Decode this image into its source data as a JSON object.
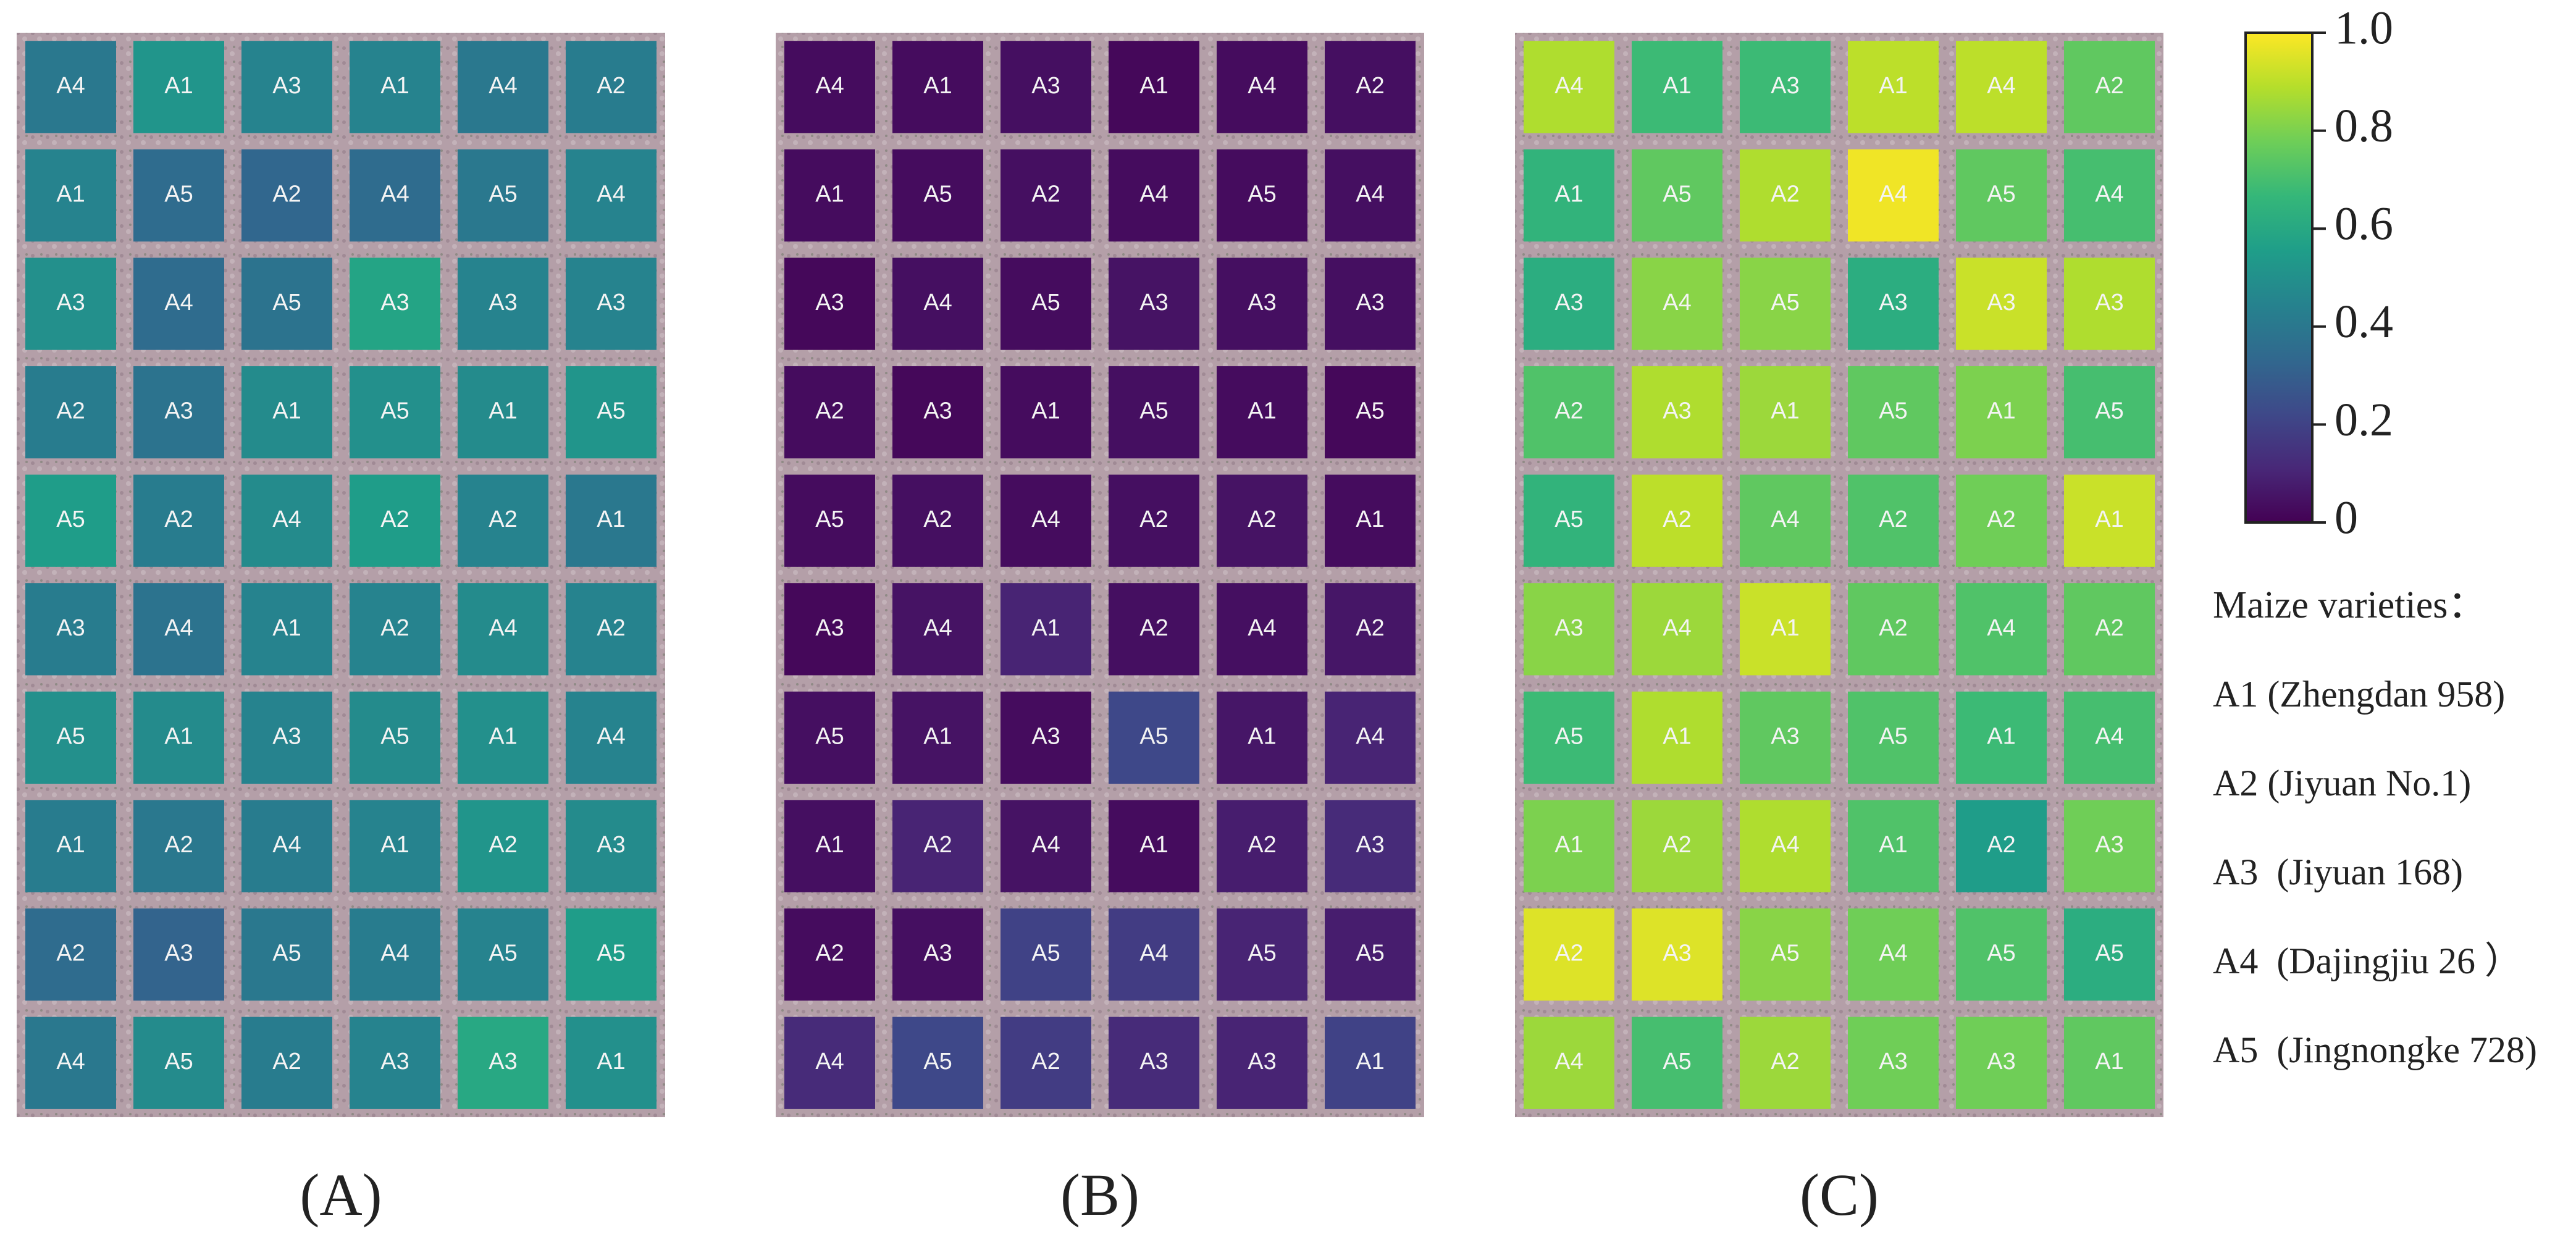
{
  "plot_labels": [
    [
      "A4",
      "A1",
      "A3",
      "A1",
      "A4",
      "A2"
    ],
    [
      "A1",
      "A5",
      "A2",
      "A4",
      "A5",
      "A4"
    ],
    [
      "A3",
      "A4",
      "A5",
      "A3",
      "A3",
      "A3"
    ],
    [
      "A2",
      "A3",
      "A1",
      "A5",
      "A1",
      "A5"
    ],
    [
      "A5",
      "A2",
      "A4",
      "A2",
      "A2",
      "A1"
    ],
    [
      "A3",
      "A4",
      "A1",
      "A2",
      "A4",
      "A2"
    ],
    [
      "A5",
      "A1",
      "A3",
      "A5",
      "A1",
      "A4"
    ],
    [
      "A1",
      "A2",
      "A4",
      "A1",
      "A2",
      "A3"
    ],
    [
      "A2",
      "A3",
      "A5",
      "A4",
      "A5",
      "A5"
    ],
    [
      "A4",
      "A5",
      "A2",
      "A3",
      "A3",
      "A1"
    ]
  ],
  "chart_data": [
    {
      "type": "heatmap",
      "title": "(A)",
      "values": [
        [
          0.4,
          0.52,
          0.45,
          0.45,
          0.4,
          0.42
        ],
        [
          0.45,
          0.35,
          0.33,
          0.35,
          0.4,
          0.45
        ],
        [
          0.5,
          0.35,
          0.38,
          0.58,
          0.45,
          0.45
        ],
        [
          0.42,
          0.38,
          0.48,
          0.5,
          0.48,
          0.52
        ],
        [
          0.55,
          0.42,
          0.48,
          0.55,
          0.45,
          0.4
        ],
        [
          0.42,
          0.38,
          0.45,
          0.45,
          0.48,
          0.45
        ],
        [
          0.5,
          0.48,
          0.45,
          0.48,
          0.5,
          0.45
        ],
        [
          0.42,
          0.4,
          0.42,
          0.45,
          0.52,
          0.48
        ],
        [
          0.35,
          0.32,
          0.4,
          0.42,
          0.45,
          0.55
        ],
        [
          0.4,
          0.48,
          0.42,
          0.45,
          0.6,
          0.5
        ]
      ]
    },
    {
      "type": "heatmap",
      "title": "(B)",
      "values": [
        [
          0.03,
          0.03,
          0.04,
          0.02,
          0.03,
          0.04
        ],
        [
          0.03,
          0.03,
          0.04,
          0.03,
          0.03,
          0.04
        ],
        [
          0.02,
          0.04,
          0.03,
          0.05,
          0.04,
          0.04
        ],
        [
          0.03,
          0.02,
          0.03,
          0.04,
          0.03,
          0.02
        ],
        [
          0.03,
          0.04,
          0.03,
          0.04,
          0.05,
          0.03
        ],
        [
          0.02,
          0.05,
          0.1,
          0.04,
          0.04,
          0.06
        ],
        [
          0.04,
          0.05,
          0.03,
          0.22,
          0.06,
          0.1
        ],
        [
          0.04,
          0.1,
          0.05,
          0.03,
          0.08,
          0.12
        ],
        [
          0.03,
          0.04,
          0.2,
          0.18,
          0.1,
          0.08
        ],
        [
          0.12,
          0.22,
          0.18,
          0.12,
          0.1,
          0.2
        ]
      ]
    },
    {
      "type": "heatmap",
      "title": "(C)",
      "values": [
        [
          0.88,
          0.68,
          0.68,
          0.9,
          0.9,
          0.75
        ],
        [
          0.65,
          0.75,
          0.88,
          0.98,
          0.75,
          0.7
        ],
        [
          0.62,
          0.82,
          0.82,
          0.62,
          0.92,
          0.88
        ],
        [
          0.72,
          0.88,
          0.85,
          0.75,
          0.8,
          0.7
        ],
        [
          0.65,
          0.9,
          0.75,
          0.72,
          0.78,
          0.92
        ],
        [
          0.82,
          0.85,
          0.92,
          0.75,
          0.72,
          0.75
        ],
        [
          0.68,
          0.88,
          0.75,
          0.72,
          0.68,
          0.7
        ],
        [
          0.8,
          0.85,
          0.88,
          0.72,
          0.55,
          0.78
        ],
        [
          0.95,
          0.95,
          0.82,
          0.78,
          0.72,
          0.62
        ],
        [
          0.85,
          0.7,
          0.85,
          0.78,
          0.78,
          0.75
        ]
      ]
    }
  ],
  "colorbar": {
    "lim": [
      0,
      1
    ],
    "ticks": [
      0,
      0.2,
      0.4,
      0.6,
      0.8,
      {
        "value": 1,
        "label": "1.0"
      }
    ],
    "colormap": "viridis"
  },
  "legend": {
    "title": "Maize varieties：",
    "items": [
      "A1 (Zhengdan 958)",
      "A2 (Jiyuan No.1)",
      "A3  (Jiyuan 168)",
      "A4  (Dajingjiu 26 ）",
      "A5  (Jingnongke 728)"
    ]
  }
}
